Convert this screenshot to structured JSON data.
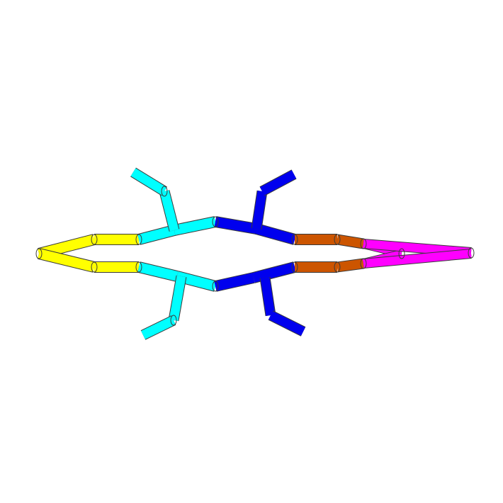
{
  "scene": {
    "background": "#ffffff",
    "segment_colors": {
      "yellow": "#ffff00",
      "cyan": "#00ffff",
      "blue": "#0000ee",
      "orange": "#cc5500",
      "magenta": "#ff00ff"
    }
  }
}
